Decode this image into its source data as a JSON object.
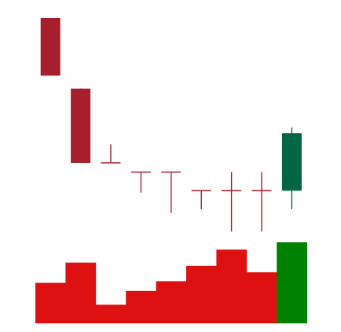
{
  "chart_data": {
    "type": "candlestick",
    "title": "",
    "xlabel": "",
    "ylabel": "",
    "grid": false,
    "legend": "none",
    "price_range": [
      0,
      100
    ],
    "volume_range": [
      0,
      100
    ],
    "colors": {
      "down": "#a51f2d",
      "up": "#006644",
      "volume_down": "#dd1111",
      "volume_up": "#008000",
      "wick": "#a51f2d"
    },
    "candles": [
      {
        "open": 100,
        "high": 100,
        "low": 69,
        "close": 69,
        "direction": "down"
      },
      {
        "open": 62,
        "high": 62,
        "low": 22,
        "close": 22,
        "direction": "down"
      },
      {
        "open": 22,
        "high": 32,
        "low": 22,
        "close": 22,
        "direction": "flat"
      },
      {
        "open": 17,
        "high": 17,
        "low": 6,
        "close": 17,
        "direction": "flat"
      },
      {
        "open": 17,
        "high": 17,
        "low": -5,
        "close": 17,
        "direction": "flat"
      },
      {
        "open": 7,
        "high": 7,
        "low": -3,
        "close": 7,
        "direction": "flat"
      },
      {
        "open": 7,
        "high": 17,
        "low": -15,
        "close": 7,
        "direction": "flat"
      },
      {
        "open": 7,
        "high": 17,
        "low": -15,
        "close": 7,
        "direction": "flat"
      },
      {
        "open": 7,
        "high": 41,
        "low": -3,
        "close": 38,
        "direction": "up"
      }
    ],
    "volume": [
      {
        "value": 50,
        "direction": "down"
      },
      {
        "value": 75,
        "direction": "down"
      },
      {
        "value": 23,
        "direction": "down"
      },
      {
        "value": 40,
        "direction": "down"
      },
      {
        "value": 52,
        "direction": "down"
      },
      {
        "value": 71,
        "direction": "down"
      },
      {
        "value": 91,
        "direction": "down"
      },
      {
        "value": 63,
        "direction": "down"
      },
      {
        "value": 100,
        "direction": "up"
      }
    ]
  }
}
